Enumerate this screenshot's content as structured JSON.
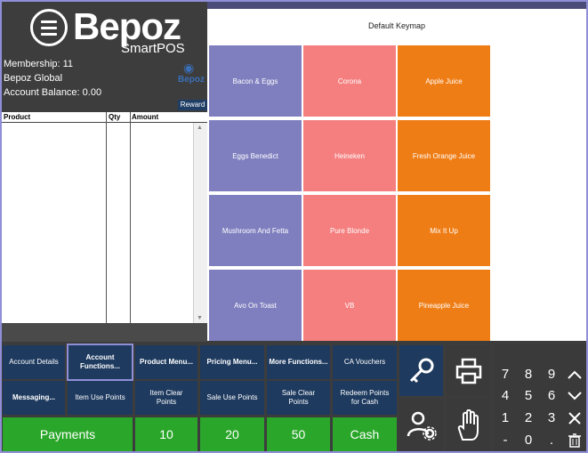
{
  "header": {
    "logo_text": "Bepoz",
    "logo_sub": "SmartPOS",
    "mini_logo": "Bepoz"
  },
  "member": {
    "membership": "Membership: 11",
    "name": "Bepoz Global",
    "balance": "Account Balance: 0.00",
    "reward_label": "Reward"
  },
  "order": {
    "columns": [
      "Product",
      "Qty",
      "Amount"
    ]
  },
  "keymap": {
    "title": "Default Keymap",
    "keys": [
      {
        "label": "Bacon & Eggs",
        "color": "#7f7fc0"
      },
      {
        "label": "Corona",
        "color": "#f57f7f"
      },
      {
        "label": "Apple Juice",
        "color": "#ef7d15"
      },
      {
        "label": "Eggs Benedict",
        "color": "#7f7fc0"
      },
      {
        "label": "Heineken",
        "color": "#f57f7f"
      },
      {
        "label": "Fresh Orange Juice",
        "color": "#ef7d15"
      },
      {
        "label": "Mushroom And Fetta",
        "color": "#7f7fc0"
      },
      {
        "label": "Pure Blonde",
        "color": "#f57f7f"
      },
      {
        "label": "Mix It Up",
        "color": "#ef7d15"
      },
      {
        "label": "Avo On Toast",
        "color": "#7f7fc0"
      },
      {
        "label": "VB",
        "color": "#f57f7f"
      },
      {
        "label": "Pineapple Juice",
        "color": "#ef7d15"
      }
    ]
  },
  "functions": {
    "row1": [
      "Account Details",
      "Account Functions...",
      "Product Menu...",
      "Pricing Menu...",
      "More Functions...",
      "CA Vouchers"
    ],
    "row2": [
      "Messaging...",
      "Item Use Points",
      "Item Clear Points",
      "Sale Use Points",
      "Sale Clear Points",
      "Redeem Points for Cash"
    ],
    "row3": [
      "Payments",
      "10",
      "20",
      "50",
      "Cash"
    ]
  },
  "icons": [
    "key-icon",
    "printer-icon",
    "user-settings-icon",
    "hand-icon"
  ],
  "numpad": {
    "keys": [
      "7",
      "8",
      "9",
      "4",
      "5",
      "6",
      "1",
      "2",
      "3",
      "-",
      "0",
      "."
    ]
  },
  "colors": {
    "accent": "#8f8fd8",
    "button_dark": "#1e3a5f",
    "payment_green": "#2aa72a"
  }
}
